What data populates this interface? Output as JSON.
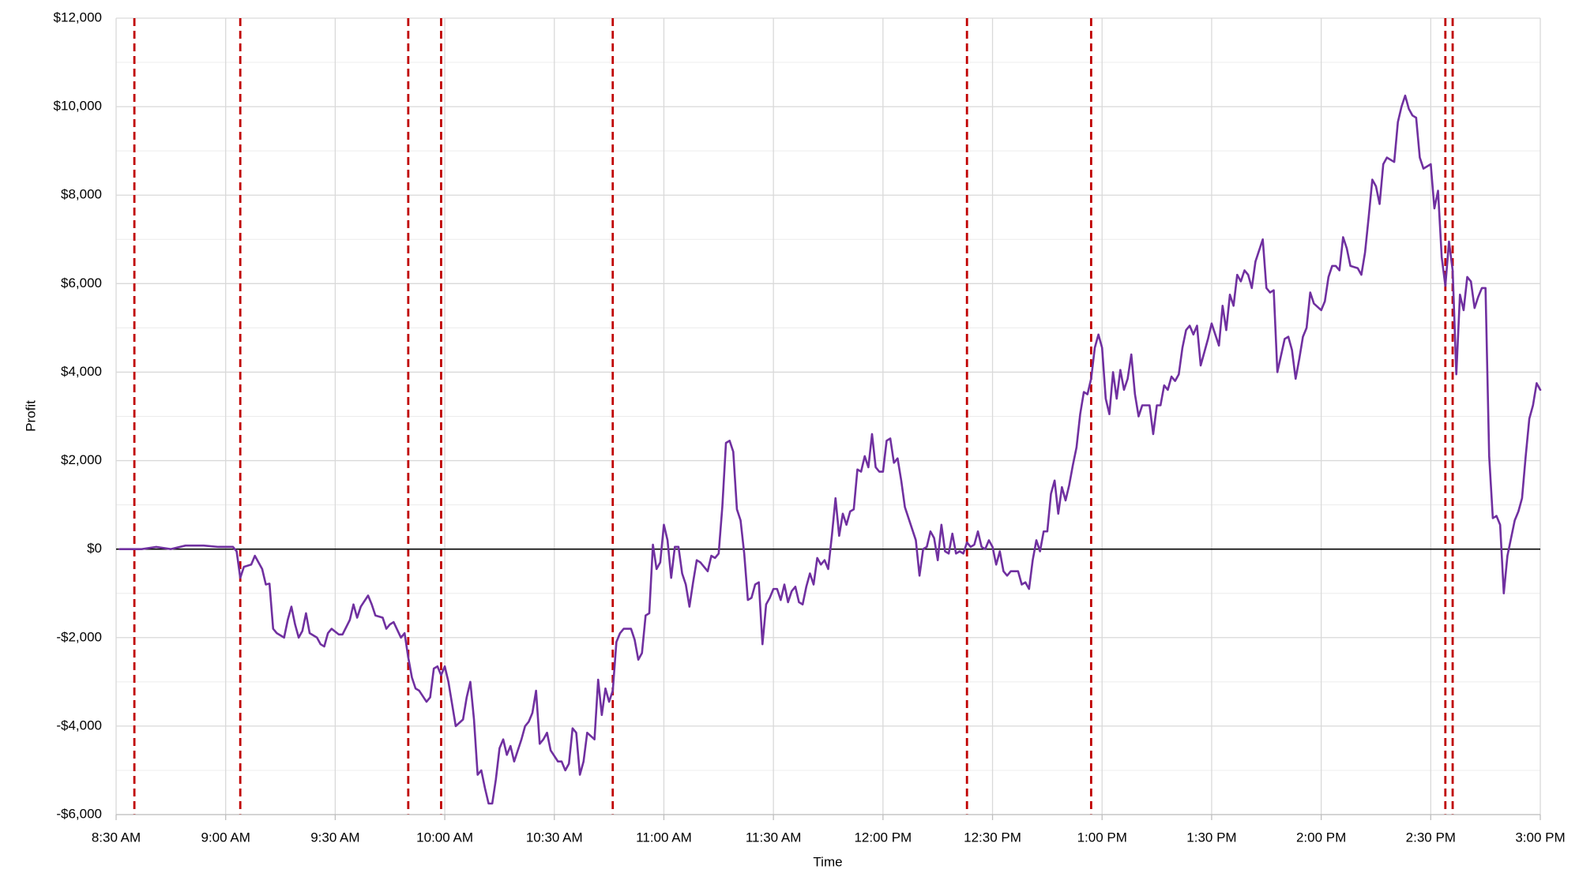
{
  "chart_data": {
    "type": "line",
    "x_label": "Time",
    "y_label": "Profit",
    "color": "#7030a0",
    "zero_line": true,
    "grid": true,
    "marker_lines": [
      515,
      544,
      590,
      599,
      646,
      743,
      777,
      874,
      876
    ],
    "marker_color": "#c00000",
    "xlim": [
      510,
      900
    ],
    "xticks": [
      {
        "value": 510,
        "label": "8:30 AM"
      },
      {
        "value": 540,
        "label": "9:00 AM"
      },
      {
        "value": 570,
        "label": "9:30 AM"
      },
      {
        "value": 600,
        "label": "10:00 AM"
      },
      {
        "value": 630,
        "label": "10:30 AM"
      },
      {
        "value": 660,
        "label": "11:00 AM"
      },
      {
        "value": 690,
        "label": "11:30 AM"
      },
      {
        "value": 720,
        "label": "12:00 PM"
      },
      {
        "value": 750,
        "label": "12:30 PM"
      },
      {
        "value": 780,
        "label": "1:00 PM"
      },
      {
        "value": 810,
        "label": "1:30 PM"
      },
      {
        "value": 840,
        "label": "2:00 PM"
      },
      {
        "value": 870,
        "label": "2:30 PM"
      },
      {
        "value": 900,
        "label": "3:00 PM"
      }
    ],
    "ylim": [
      -6000,
      12000
    ],
    "yticks": [
      {
        "value": -6000,
        "label": "-$6,000"
      },
      {
        "value": -4000,
        "label": "-$4,000"
      },
      {
        "value": -2000,
        "label": "-$2,000"
      },
      {
        "value": 0,
        "label": "$0"
      },
      {
        "value": 2000,
        "label": "$2,000"
      },
      {
        "value": 4000,
        "label": "$4,000"
      },
      {
        "value": 6000,
        "label": "$6,000"
      },
      {
        "value": 8000,
        "label": "$8,000"
      },
      {
        "value": 10000,
        "label": "$10,000"
      },
      {
        "value": 12000,
        "label": "$12,000"
      }
    ],
    "x": [
      511,
      517,
      521,
      525,
      529,
      534,
      538,
      542,
      543,
      544,
      545,
      547,
      548,
      550,
      551,
      552,
      553,
      554,
      556,
      557,
      558,
      559,
      560,
      561,
      562,
      563,
      565,
      566,
      567,
      568,
      569,
      571,
      572,
      574,
      575,
      576,
      577,
      579,
      580,
      581,
      583,
      584,
      585,
      586,
      588,
      589,
      590,
      591,
      592,
      593,
      595,
      596,
      597,
      598,
      599,
      600,
      601,
      602,
      603,
      605,
      606,
      607,
      608,
      609,
      610,
      611,
      612,
      613,
      614,
      615,
      616,
      617,
      618,
      619,
      621,
      622,
      623,
      624,
      625,
      626,
      627,
      628,
      629,
      631,
      632,
      633,
      634,
      635,
      636,
      637,
      638,
      639,
      641,
      642,
      643,
      644,
      645,
      646,
      647,
      648,
      649,
      651,
      652,
      653,
      654,
      655,
      656,
      657,
      658,
      659,
      660,
      661,
      662,
      663,
      664,
      665,
      666,
      667,
      668,
      669,
      670,
      672,
      673,
      674,
      675,
      676,
      677,
      678,
      679,
      680,
      681,
      682,
      683,
      684,
      685,
      686,
      687,
      688,
      689,
      690,
      691,
      692,
      693,
      694,
      695,
      696,
      697,
      698,
      699,
      700,
      701,
      702,
      703,
      704,
      705,
      706,
      707,
      708,
      709,
      710,
      711,
      712,
      713,
      714,
      715,
      716,
      717,
      718,
      719,
      720,
      721,
      722,
      723,
      724,
      725,
      726,
      728,
      729,
      730,
      731,
      732,
      733,
      734,
      735,
      736,
      737,
      738,
      739,
      740,
      741,
      742,
      743,
      744,
      745,
      746,
      747,
      748,
      749,
      750,
      751,
      752,
      753,
      754,
      755,
      756,
      757,
      758,
      759,
      760,
      761,
      762,
      763,
      764,
      765,
      766,
      767,
      768,
      769,
      770,
      771,
      772,
      773,
      774,
      775,
      776,
      777,
      778,
      779,
      780,
      781,
      782,
      783,
      784,
      785,
      786,
      787,
      788,
      789,
      790,
      791,
      792,
      793,
      794,
      795,
      796,
      797,
      798,
      799,
      800,
      801,
      802,
      803,
      804,
      805,
      806,
      807,
      809,
      810,
      811,
      812,
      813,
      814,
      815,
      816,
      817,
      818,
      819,
      820,
      821,
      822,
      824,
      825,
      826,
      827,
      828,
      830,
      831,
      832,
      833,
      834,
      835,
      836,
      837,
      838,
      840,
      841,
      842,
      843,
      844,
      845,
      846,
      847,
      848,
      850,
      851,
      852,
      853,
      854,
      855,
      856,
      857,
      858,
      860,
      861,
      862,
      863,
      864,
      865,
      866,
      867,
      868,
      870,
      871,
      872,
      873,
      874,
      875,
      876,
      877,
      878,
      879,
      880,
      881,
      882,
      883,
      884,
      885,
      886,
      887,
      888,
      889,
      890,
      891,
      893,
      894,
      895,
      896,
      897,
      898,
      899,
      900
    ],
    "values": [
      0,
      0,
      50,
      0,
      80,
      80,
      50,
      50,
      -50,
      -650,
      -400,
      -350,
      -150,
      -450,
      -800,
      -780,
      -1800,
      -1900,
      -2000,
      -1600,
      -1300,
      -1700,
      -2000,
      -1850,
      -1450,
      -1900,
      -2000,
      -2150,
      -2200,
      -1900,
      -1800,
      -1930,
      -1930,
      -1600,
      -1250,
      -1550,
      -1300,
      -1050,
      -1250,
      -1500,
      -1550,
      -1800,
      -1700,
      -1650,
      -2000,
      -1900,
      -2450,
      -2900,
      -3150,
      -3200,
      -3450,
      -3350,
      -2700,
      -2650,
      -2850,
      -2650,
      -3000,
      -3500,
      -4000,
      -3850,
      -3350,
      -3000,
      -3850,
      -5100,
      -5000,
      -5400,
      -5750,
      -5750,
      -5200,
      -4500,
      -4300,
      -4650,
      -4450,
      -4800,
      -4300,
      -4000,
      -3900,
      -3700,
      -3200,
      -4400,
      -4300,
      -4150,
      -4550,
      -4800,
      -4800,
      -5000,
      -4850,
      -4050,
      -4150,
      -5100,
      -4800,
      -4150,
      -4300,
      -2950,
      -3750,
      -3150,
      -3450,
      -3200,
      -2100,
      -1900,
      -1800,
      -1800,
      -2050,
      -2500,
      -2350,
      -1500,
      -1450,
      100,
      -450,
      -300,
      550,
      200,
      -650,
      50,
      50,
      -550,
      -800,
      -1300,
      -750,
      -250,
      -300,
      -500,
      -150,
      -200,
      -100,
      950,
      2400,
      2450,
      2200,
      900,
      650,
      -100,
      -1150,
      -1100,
      -800,
      -750,
      -2150,
      -1250,
      -1100,
      -900,
      -900,
      -1150,
      -800,
      -1200,
      -950,
      -850,
      -1200,
      -1250,
      -850,
      -550,
      -800,
      -200,
      -350,
      -250,
      -450,
      300,
      1150,
      300,
      800,
      550,
      850,
      900,
      1800,
      1750,
      2100,
      1850,
      2600,
      1850,
      1750,
      1750,
      2450,
      2500,
      1950,
      2050,
      1550,
      950,
      450,
      200,
      -600,
      0,
      50,
      400,
      250,
      -250,
      550,
      -50,
      -100,
      350,
      -100,
      -50,
      -100,
      150,
      50,
      100,
      400,
      50,
      0,
      200,
      50,
      -350,
      -50,
      -500,
      -600,
      -500,
      -500,
      -500,
      -800,
      -750,
      -900,
      -250,
      200,
      -50,
      400,
      400,
      1250,
      1550,
      800,
      1400,
      1100,
      1450,
      1900,
      2300,
      3050,
      3550,
      3500,
      3850,
      4550,
      4850,
      4550,
      3400,
      3050,
      4000,
      3400,
      4050,
      3600,
      3850,
      4400,
      3500,
      3000,
      3250,
      3250,
      3250,
      2600,
      3250,
      3250,
      3700,
      3600,
      3900,
      3800,
      3950,
      4550,
      4950,
      5050,
      4850,
      5050,
      4150,
      4750,
      5100,
      4850,
      4600,
      5500,
      4950,
      5750,
      5500,
      6200,
      6050,
      6300,
      6200,
      5900,
      6500,
      7000,
      5900,
      5800,
      5850,
      4000,
      4750,
      4800,
      4500,
      3850,
      4300,
      4800,
      5000,
      5800,
      5550,
      5400,
      5600,
      6150,
      6400,
      6400,
      6300,
      7050,
      6800,
      6400,
      6350,
      6200,
      6700,
      7500,
      8350,
      8200,
      7800,
      8700,
      8850,
      8750,
      9650,
      10000,
      10250,
      9950,
      9800,
      9750,
      8850,
      8600,
      8700,
      7700,
      8100,
      6600,
      5950,
      6950,
      6300,
      3950,
      5750,
      5400,
      6150,
      6050,
      5450,
      5700,
      5900,
      5900,
      2100,
      700,
      750,
      550,
      -1000,
      -150,
      650,
      850,
      1150,
      2100,
      2950,
      3250,
      3750,
      3600
    ]
  }
}
